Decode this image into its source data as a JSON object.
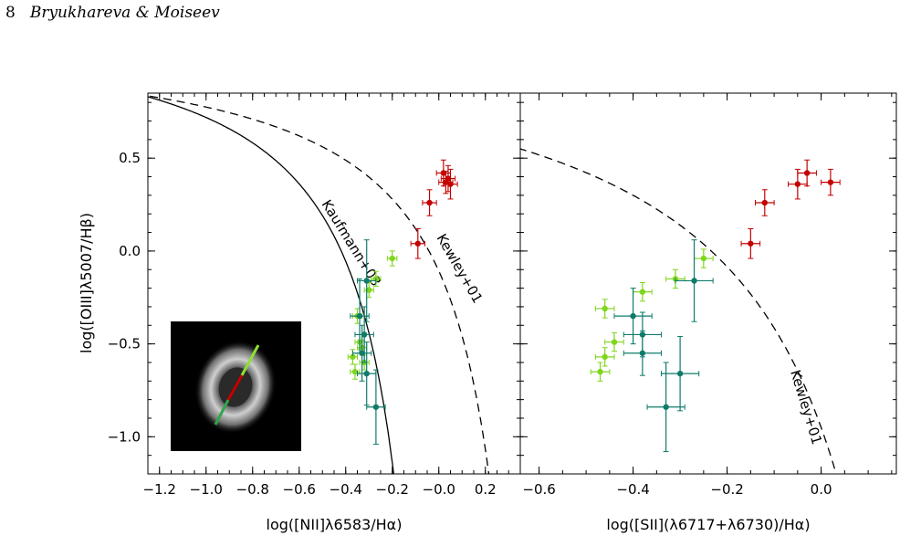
{
  "header": {
    "page_number": "8",
    "authors": "Bryukhareva & Moiseev"
  },
  "colors": {
    "agn": "#c40000",
    "green": "#7fd61c",
    "teal": "#0f7b6a",
    "axis": "#000000"
  },
  "chart_data": [
    {
      "type": "scatter",
      "xlabel": "log([NII]λ6583/Hα)",
      "ylabel": "log([OIII]λ5007/Hβ)",
      "xlim": [
        -1.25,
        0.35
      ],
      "ylim": [
        -1.2,
        0.85
      ],
      "xticks": [
        "−1.2",
        "−1.0",
        "−0.8",
        "−0.6",
        "−0.4",
        "−0.2",
        "−0.0",
        "0.2"
      ],
      "yticks": [
        "0.5",
        "0.0",
        "−0.5",
        "−1.0"
      ],
      "curves": [
        {
          "label": "Kaufmann+03",
          "style": "solid"
        },
        {
          "label": "Kewley+01",
          "style": "dashed"
        }
      ],
      "inset_image": "galaxy-ring-image",
      "series": [
        {
          "color": "red",
          "x": [
            0.02,
            0.04,
            0.05,
            0.03,
            -0.04,
            -0.09
          ],
          "y": [
            0.42,
            0.39,
            0.36,
            0.37,
            0.26,
            0.04
          ],
          "xerr": 0.03,
          "yerr": [
            0.07,
            0.07,
            0.08,
            0.06,
            0.07,
            0.08
          ]
        },
        {
          "color": "green",
          "x": [
            -0.2,
            -0.27,
            -0.3,
            -0.35,
            -0.34,
            -0.37,
            -0.36,
            -0.33,
            -0.32
          ],
          "y": [
            -0.04,
            -0.15,
            -0.21,
            -0.35,
            -0.49,
            -0.57,
            -0.65,
            -0.52,
            -0.6
          ],
          "xerr": 0.02,
          "yerr": 0.04
        },
        {
          "color": "teal",
          "x": [
            -0.31,
            -0.34,
            -0.32,
            -0.33,
            -0.31,
            -0.27
          ],
          "y": [
            -0.16,
            -0.35,
            -0.45,
            -0.55,
            -0.66,
            -0.84
          ],
          "xerr": 0.04,
          "yerr": [
            0.22,
            0.2,
            0.15,
            0.15,
            0.17,
            0.2
          ]
        }
      ]
    },
    {
      "type": "scatter",
      "xlabel": "log([SII](λ6717+λ6730)/Hα)",
      "xlim": [
        -0.64,
        0.16
      ],
      "ylim": [
        -1.2,
        0.85
      ],
      "xticks": [
        "−0.6",
        "−0.4",
        "−0.2",
        "0.0"
      ],
      "curves": [
        {
          "label": "Kewley+01",
          "style": "dashed"
        }
      ],
      "series": [
        {
          "color": "red",
          "x": [
            -0.03,
            -0.05,
            0.02,
            -0.12,
            -0.15
          ],
          "y": [
            0.42,
            0.36,
            0.37,
            0.26,
            0.04
          ],
          "xerr": 0.02,
          "yerr": [
            0.07,
            0.08,
            0.07,
            0.07,
            0.08
          ]
        },
        {
          "color": "green",
          "x": [
            -0.25,
            -0.31,
            -0.38,
            -0.46,
            -0.44,
            -0.46,
            -0.47
          ],
          "y": [
            -0.04,
            -0.15,
            -0.22,
            -0.31,
            -0.49,
            -0.57,
            -0.65
          ],
          "xerr": 0.02,
          "yerr": 0.05
        },
        {
          "color": "teal",
          "x": [
            -0.27,
            -0.4,
            -0.38,
            -0.38,
            -0.3,
            -0.33
          ],
          "y": [
            -0.16,
            -0.35,
            -0.45,
            -0.55,
            -0.66,
            -0.84
          ],
          "xerr": 0.04,
          "yerr": [
            0.22,
            0.15,
            0.12,
            0.12,
            0.2,
            0.24
          ]
        }
      ]
    }
  ]
}
